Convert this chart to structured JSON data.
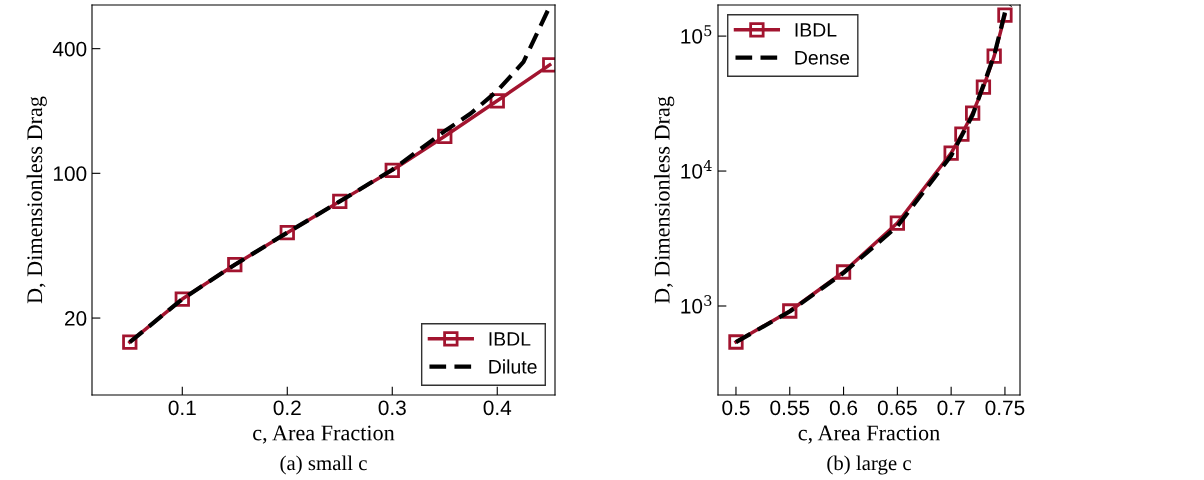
{
  "chart_data": [
    {
      "type": "line",
      "xlabel": "c, Area Fraction",
      "ylabel": "D, Dimensionless Drag",
      "annotations": [
        "(a) small c"
      ],
      "log": "y",
      "xlim": [
        0.014,
        0.455
      ],
      "ylim": [
        8.5,
        650
      ],
      "xticks": [
        0.1,
        0.2,
        0.3,
        0.4
      ],
      "yticks": [
        20,
        100,
        400
      ],
      "legend": "bottom right",
      "grid": false,
      "series": [
        {
          "name": "IBDL",
          "color": "#a2142f",
          "marker": "square",
          "line_style": "solid",
          "x": [
            0.05,
            0.1,
            0.15,
            0.2,
            0.25,
            0.3,
            0.35,
            0.4,
            0.45
          ],
          "values": [
            15.3,
            24.7,
            36.2,
            51.7,
            73.2,
            103.4,
            151,
            224,
            334
          ]
        },
        {
          "name": "Dilute",
          "color": "#000000",
          "marker": "none",
          "line_style": "dashed",
          "x": [
            0.05,
            0.1,
            0.15,
            0.2,
            0.25,
            0.3,
            0.35,
            0.375,
            0.4,
            0.425,
            0.45
          ],
          "values": [
            15.3,
            24.7,
            36.2,
            51.7,
            73.2,
            104,
            160,
            195,
            250,
            345,
            640
          ]
        }
      ]
    },
    {
      "type": "line",
      "xlabel": "c, Area Fraction",
      "ylabel": "D, Dimensionless Drag",
      "annotations": [
        "(b) large c"
      ],
      "log": "y",
      "xlim": [
        0.4833,
        0.764
      ],
      "ylim": [
        219,
        170000
      ],
      "xticks": [
        0.5,
        0.55,
        0.6,
        0.65,
        0.7,
        0.75
      ],
      "yticks": [
        {
          "value": 1000,
          "label": "10$^{3}$"
        },
        {
          "value": 10000,
          "label": "10$^{4}$"
        },
        {
          "value": 100000,
          "label": "10$^{5}$"
        }
      ],
      "legend": "top left",
      "grid": false,
      "series": [
        {
          "name": "IBDL",
          "color": "#a2142f",
          "marker": "square",
          "line_style": "solid",
          "x": [
            0.5,
            0.55,
            0.6,
            0.65,
            0.7,
            0.71,
            0.72,
            0.73,
            0.74,
            0.75
          ],
          "values": [
            541,
            918,
            1786,
            4120,
            13600,
            18800,
            26900,
            41900,
            71100,
            143000
          ]
        },
        {
          "name": "Dense",
          "color": "#000000",
          "marker": "none",
          "line_style": "dashed",
          "x": [
            0.5,
            0.55,
            0.6,
            0.65,
            0.7,
            0.72,
            0.74,
            0.75,
            0.755
          ],
          "values": [
            540,
            910,
            1760,
            3900,
            13000,
            26000,
            72000,
            150000,
            170000
          ]
        }
      ]
    }
  ]
}
